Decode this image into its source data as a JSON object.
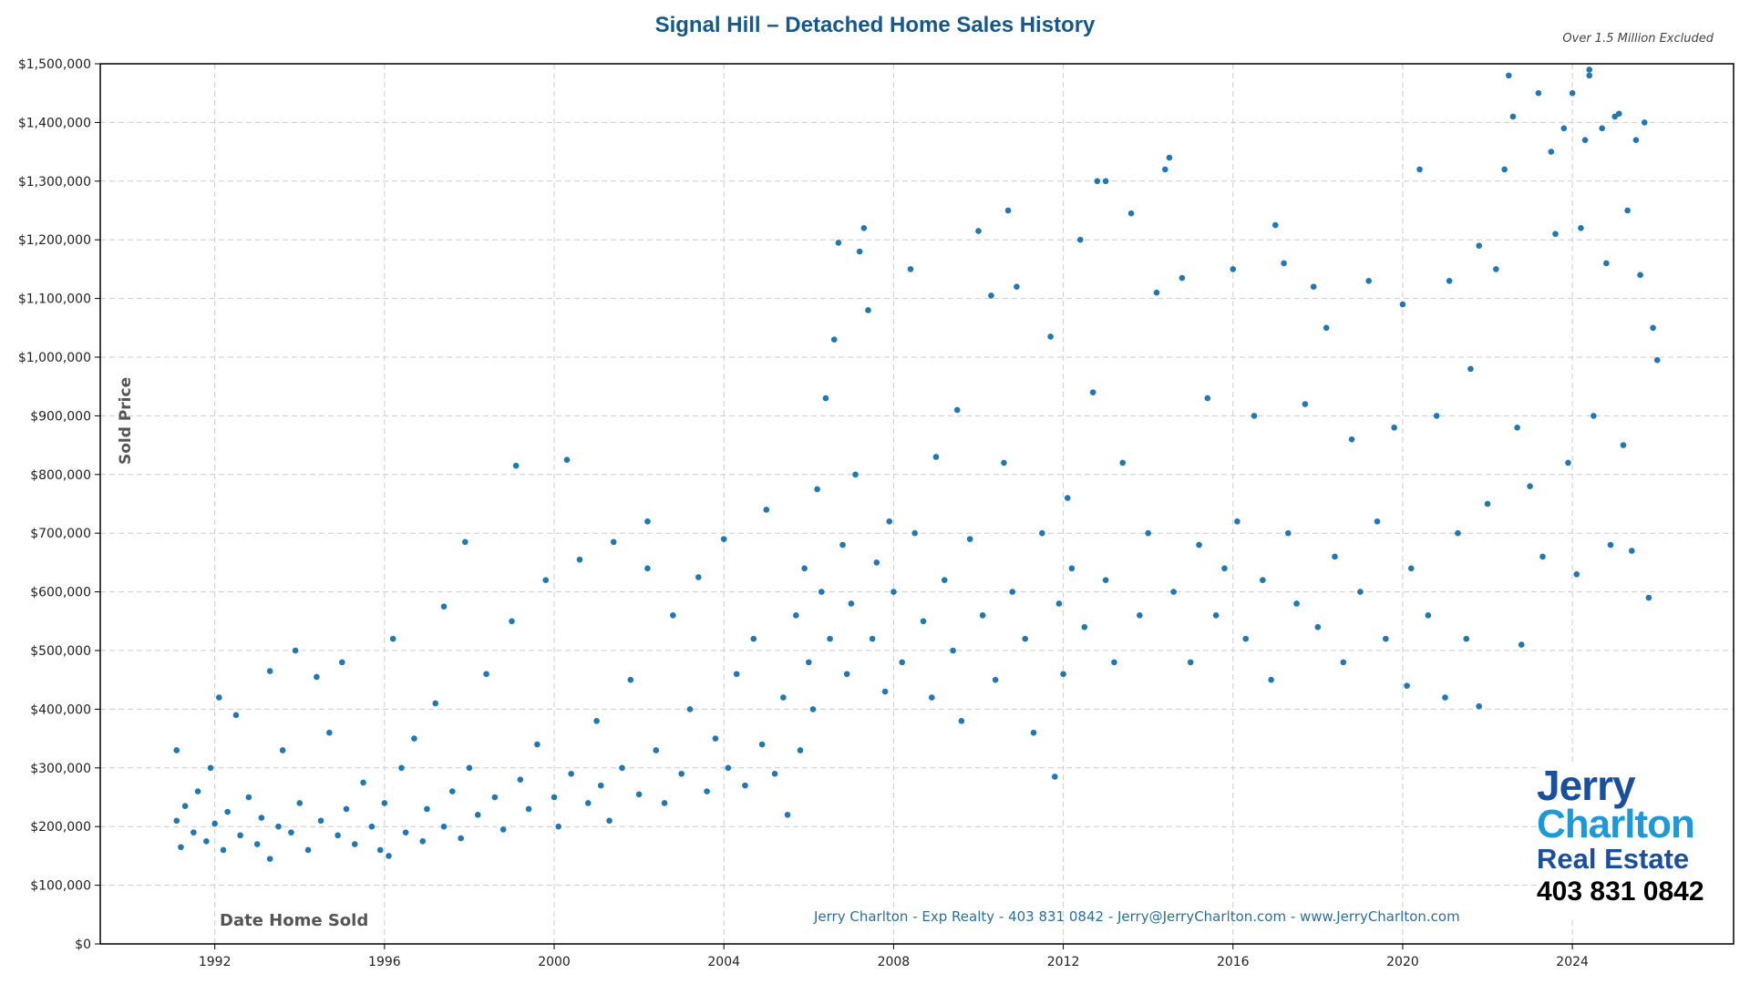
{
  "chart_data": {
    "type": "scatter",
    "title": "Signal Hill – Detached Home Sales History",
    "subtitle": "Over 1.5 Million Excluded",
    "xlabel": "Date Home Sold",
    "ylabel": "Sold Price",
    "xlim": [
      1989.3,
      2027.8
    ],
    "ylim": [
      0,
      1500000
    ],
    "xticks": [
      1992,
      1996,
      2000,
      2004,
      2008,
      2012,
      2016,
      2020,
      2024
    ],
    "yticks": [
      0,
      100000,
      200000,
      300000,
      400000,
      500000,
      600000,
      700000,
      800000,
      900000,
      1000000,
      1100000,
      1200000,
      1300000,
      1400000,
      1500000
    ],
    "ytick_labels": [
      "$0",
      "$100,000",
      "$200,000",
      "$300,000",
      "$400,000",
      "$500,000",
      "$600,000",
      "$700,000",
      "$800,000",
      "$900,000",
      "$1,000,000",
      "$1,100,000",
      "$1,200,000",
      "$1,300,000",
      "$1,400,000",
      "$1,500,000"
    ],
    "grid": true,
    "point_color": "#1f77b4",
    "points": [
      [
        1991.1,
        330000
      ],
      [
        1991.1,
        210000
      ],
      [
        1991.2,
        165000
      ],
      [
        1991.3,
        235000
      ],
      [
        1991.5,
        190000
      ],
      [
        1991.6,
        260000
      ],
      [
        1991.8,
        175000
      ],
      [
        1991.9,
        300000
      ],
      [
        1992.0,
        205000
      ],
      [
        1992.1,
        420000
      ],
      [
        1992.2,
        160000
      ],
      [
        1992.3,
        225000
      ],
      [
        1992.5,
        390000
      ],
      [
        1992.6,
        185000
      ],
      [
        1992.8,
        250000
      ],
      [
        1993.0,
        170000
      ],
      [
        1993.1,
        215000
      ],
      [
        1993.3,
        465000
      ],
      [
        1993.3,
        145000
      ],
      [
        1993.5,
        200000
      ],
      [
        1993.6,
        330000
      ],
      [
        1993.8,
        190000
      ],
      [
        1993.9,
        500000
      ],
      [
        1994.0,
        240000
      ],
      [
        1994.2,
        160000
      ],
      [
        1994.4,
        455000
      ],
      [
        1994.5,
        210000
      ],
      [
        1994.7,
        360000
      ],
      [
        1994.9,
        185000
      ],
      [
        1995.0,
        480000
      ],
      [
        1995.1,
        230000
      ],
      [
        1995.3,
        170000
      ],
      [
        1995.5,
        275000
      ],
      [
        1995.7,
        200000
      ],
      [
        1995.9,
        160000
      ],
      [
        1996.0,
        240000
      ],
      [
        1996.1,
        150000
      ],
      [
        1996.2,
        520000
      ],
      [
        1996.4,
        300000
      ],
      [
        1996.5,
        190000
      ],
      [
        1996.7,
        350000
      ],
      [
        1996.9,
        175000
      ],
      [
        1997.0,
        230000
      ],
      [
        1997.2,
        410000
      ],
      [
        1997.4,
        575000
      ],
      [
        1997.4,
        200000
      ],
      [
        1997.6,
        260000
      ],
      [
        1997.8,
        180000
      ],
      [
        1997.9,
        685000
      ],
      [
        1998.0,
        300000
      ],
      [
        1998.2,
        220000
      ],
      [
        1998.4,
        460000
      ],
      [
        1998.6,
        250000
      ],
      [
        1998.8,
        195000
      ],
      [
        1999.0,
        550000
      ],
      [
        1999.1,
        815000
      ],
      [
        1999.2,
        280000
      ],
      [
        1999.4,
        230000
      ],
      [
        1999.6,
        340000
      ],
      [
        1999.8,
        620000
      ],
      [
        2000.0,
        250000
      ],
      [
        2000.1,
        200000
      ],
      [
        2000.3,
        825000
      ],
      [
        2000.4,
        290000
      ],
      [
        2000.6,
        655000
      ],
      [
        2000.8,
        240000
      ],
      [
        2001.0,
        380000
      ],
      [
        2001.1,
        270000
      ],
      [
        2001.3,
        210000
      ],
      [
        2001.4,
        685000
      ],
      [
        2001.6,
        300000
      ],
      [
        2001.8,
        450000
      ],
      [
        2002.0,
        255000
      ],
      [
        2002.2,
        640000
      ],
      [
        2002.2,
        720000
      ],
      [
        2002.4,
        330000
      ],
      [
        2002.6,
        240000
      ],
      [
        2002.8,
        560000
      ],
      [
        2003.0,
        290000
      ],
      [
        2003.2,
        400000
      ],
      [
        2003.4,
        625000
      ],
      [
        2003.6,
        260000
      ],
      [
        2003.8,
        350000
      ],
      [
        2004.0,
        690000
      ],
      [
        2004.1,
        300000
      ],
      [
        2004.3,
        460000
      ],
      [
        2004.5,
        270000
      ],
      [
        2004.7,
        520000
      ],
      [
        2004.9,
        340000
      ],
      [
        2005.0,
        740000
      ],
      [
        2005.2,
        290000
      ],
      [
        2005.4,
        420000
      ],
      [
        2005.5,
        220000
      ],
      [
        2005.7,
        560000
      ],
      [
        2005.8,
        330000
      ],
      [
        2005.9,
        640000
      ],
      [
        2006.0,
        480000
      ],
      [
        2006.1,
        400000
      ],
      [
        2006.2,
        775000
      ],
      [
        2006.3,
        600000
      ],
      [
        2006.4,
        930000
      ],
      [
        2006.5,
        520000
      ],
      [
        2006.6,
        1030000
      ],
      [
        2006.7,
        1195000
      ],
      [
        2006.8,
        680000
      ],
      [
        2006.9,
        460000
      ],
      [
        2007.0,
        580000
      ],
      [
        2007.1,
        800000
      ],
      [
        2007.2,
        1180000
      ],
      [
        2007.3,
        1220000
      ],
      [
        2007.4,
        1080000
      ],
      [
        2007.5,
        520000
      ],
      [
        2007.6,
        650000
      ],
      [
        2007.8,
        430000
      ],
      [
        2007.9,
        720000
      ],
      [
        2008.0,
        600000
      ],
      [
        2008.2,
        480000
      ],
      [
        2008.4,
        1150000
      ],
      [
        2008.5,
        700000
      ],
      [
        2008.7,
        550000
      ],
      [
        2008.9,
        420000
      ],
      [
        2009.0,
        830000
      ],
      [
        2009.2,
        620000
      ],
      [
        2009.4,
        500000
      ],
      [
        2009.5,
        910000
      ],
      [
        2009.6,
        380000
      ],
      [
        2009.8,
        690000
      ],
      [
        2010.0,
        1215000
      ],
      [
        2010.1,
        560000
      ],
      [
        2010.3,
        1105000
      ],
      [
        2010.4,
        450000
      ],
      [
        2010.6,
        820000
      ],
      [
        2010.7,
        1250000
      ],
      [
        2010.8,
        600000
      ],
      [
        2010.9,
        1120000
      ],
      [
        2011.1,
        520000
      ],
      [
        2011.3,
        360000
      ],
      [
        2011.5,
        700000
      ],
      [
        2011.7,
        1035000
      ],
      [
        2011.8,
        285000
      ],
      [
        2011.9,
        580000
      ],
      [
        2012.0,
        460000
      ],
      [
        2012.1,
        760000
      ],
      [
        2012.2,
        640000
      ],
      [
        2012.4,
        1200000
      ],
      [
        2012.5,
        540000
      ],
      [
        2012.7,
        940000
      ],
      [
        2012.8,
        1300000
      ],
      [
        2013.0,
        1300000
      ],
      [
        2013.0,
        620000
      ],
      [
        2013.2,
        480000
      ],
      [
        2013.4,
        820000
      ],
      [
        2013.6,
        1245000
      ],
      [
        2013.8,
        560000
      ],
      [
        2014.0,
        700000
      ],
      [
        2014.2,
        1110000
      ],
      [
        2014.4,
        1320000
      ],
      [
        2014.5,
        1340000
      ],
      [
        2014.6,
        600000
      ],
      [
        2014.8,
        1135000
      ],
      [
        2015.0,
        480000
      ],
      [
        2015.2,
        680000
      ],
      [
        2015.4,
        930000
      ],
      [
        2015.6,
        560000
      ],
      [
        2015.8,
        640000
      ],
      [
        2016.0,
        1150000
      ],
      [
        2016.1,
        720000
      ],
      [
        2016.3,
        520000
      ],
      [
        2016.5,
        900000
      ],
      [
        2016.7,
        620000
      ],
      [
        2016.9,
        450000
      ],
      [
        2017.0,
        1225000
      ],
      [
        2017.2,
        1160000
      ],
      [
        2017.3,
        700000
      ],
      [
        2017.5,
        580000
      ],
      [
        2017.7,
        920000
      ],
      [
        2017.9,
        1120000
      ],
      [
        2018.0,
        540000
      ],
      [
        2018.2,
        1050000
      ],
      [
        2018.4,
        660000
      ],
      [
        2018.6,
        480000
      ],
      [
        2018.8,
        860000
      ],
      [
        2019.0,
        600000
      ],
      [
        2019.2,
        1130000
      ],
      [
        2019.4,
        720000
      ],
      [
        2019.6,
        520000
      ],
      [
        2019.8,
        880000
      ],
      [
        2020.0,
        1090000
      ],
      [
        2020.1,
        440000
      ],
      [
        2020.2,
        640000
      ],
      [
        2020.4,
        1320000
      ],
      [
        2020.6,
        560000
      ],
      [
        2020.8,
        900000
      ],
      [
        2021.0,
        420000
      ],
      [
        2021.1,
        1130000
      ],
      [
        2021.3,
        700000
      ],
      [
        2021.5,
        520000
      ],
      [
        2021.6,
        980000
      ],
      [
        2021.8,
        1190000
      ],
      [
        2021.8,
        405000
      ],
      [
        2022.0,
        750000
      ],
      [
        2022.2,
        1150000
      ],
      [
        2022.4,
        1320000
      ],
      [
        2022.5,
        1480000
      ],
      [
        2022.6,
        1410000
      ],
      [
        2022.7,
        880000
      ],
      [
        2022.8,
        510000
      ],
      [
        2023.0,
        780000
      ],
      [
        2023.2,
        1450000
      ],
      [
        2023.3,
        660000
      ],
      [
        2023.5,
        1350000
      ],
      [
        2023.6,
        1210000
      ],
      [
        2023.8,
        1390000
      ],
      [
        2023.9,
        820000
      ],
      [
        2024.0,
        1450000
      ],
      [
        2024.1,
        630000
      ],
      [
        2024.2,
        1220000
      ],
      [
        2024.3,
        1370000
      ],
      [
        2024.4,
        1490000
      ],
      [
        2024.4,
        1480000
      ],
      [
        2024.5,
        900000
      ],
      [
        2024.7,
        1390000
      ],
      [
        2024.8,
        1160000
      ],
      [
        2024.9,
        680000
      ],
      [
        2025.0,
        1410000
      ],
      [
        2025.1,
        1415000
      ],
      [
        2025.2,
        850000
      ],
      [
        2025.3,
        1250000
      ],
      [
        2025.4,
        670000
      ],
      [
        2025.5,
        1370000
      ],
      [
        2025.6,
        1140000
      ],
      [
        2025.7,
        1400000
      ],
      [
        2025.8,
        590000
      ],
      [
        2025.9,
        1050000
      ],
      [
        2026.0,
        995000
      ]
    ]
  },
  "footer": "Jerry Charlton - Exp Realty - 403 831 0842 - Jerry@JerryCharlton.com - www.JerryCharlton.com",
  "logo": {
    "line1": "Jerry",
    "line2": "Charlton",
    "line3": "Real Estate",
    "phone": "403 831 0842"
  }
}
